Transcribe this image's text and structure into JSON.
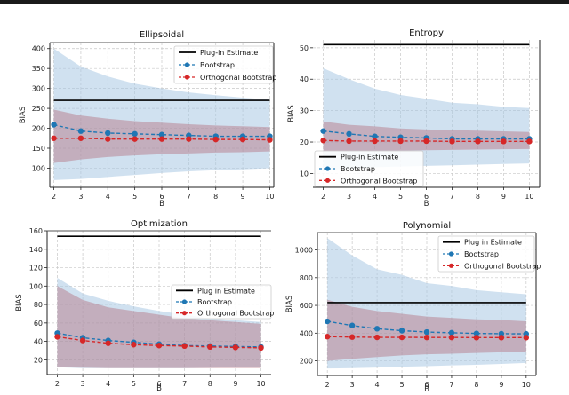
{
  "colors": {
    "plugin": "#000000",
    "bootstrap": "#1f77b4",
    "orthogonal": "#d62728",
    "bootstrap_band": "#a9c8e4",
    "orthogonal_band": "#b4707e"
  },
  "chart_data": [
    {
      "type": "line",
      "title": "Ellipsoidal",
      "xlabel": "B",
      "ylabel": "BIAS",
      "x": [
        2,
        3,
        4,
        5,
        6,
        7,
        8,
        9,
        10
      ],
      "xlim": [
        1.85,
        10.15
      ],
      "ylim": [
        52,
        415
      ],
      "yticks": [
        100,
        150,
        200,
        250,
        300,
        350,
        400
      ],
      "legend": "top-right",
      "grid": true,
      "series": [
        {
          "name": "Plug-in Estimate",
          "values": [
            270,
            270,
            270,
            270,
            270,
            270,
            270,
            270,
            270
          ]
        },
        {
          "name": "Bootstrap",
          "values": [
            209,
            193,
            188,
            186,
            184,
            182,
            180,
            180,
            180
          ],
          "band_upper": [
            400,
            355,
            330,
            312,
            300,
            290,
            283,
            277,
            272
          ],
          "band_lower": [
            70,
            73,
            78,
            83,
            88,
            92,
            95,
            97,
            100
          ]
        },
        {
          "name": "Orthogonal Bootstrap",
          "values": [
            175,
            175,
            173,
            173,
            173,
            173,
            172,
            172,
            171
          ],
          "band_upper": [
            247,
            232,
            224,
            218,
            214,
            210,
            207,
            205,
            203
          ],
          "band_lower": [
            113,
            122,
            128,
            132,
            135,
            137,
            139,
            140,
            142
          ]
        }
      ]
    },
    {
      "type": "line",
      "title": "Entropy",
      "xlabel": "B",
      "ylabel": "BIAS",
      "x": [
        2,
        3,
        4,
        5,
        6,
        7,
        8,
        9,
        10
      ],
      "xlim": [
        1.6,
        10.4
      ],
      "ylim": [
        5.6,
        52.5
      ],
      "yticks": [
        10,
        20,
        30,
        40,
        50
      ],
      "legend": "lower-left",
      "grid": true,
      "series": [
        {
          "name": "Plug-in Estimate",
          "values": [
            51,
            51,
            51,
            51,
            51,
            51,
            51,
            51,
            51
          ]
        },
        {
          "name": "Bootstrap",
          "values": [
            23.5,
            22.6,
            21.8,
            21.5,
            21.3,
            21.0,
            21.0,
            21.0,
            21.0
          ],
          "band_upper": [
            43.5,
            40,
            37,
            35,
            33.8,
            32.5,
            32,
            31.2,
            30.8
          ],
          "band_lower": [
            11,
            11.5,
            12,
            12.2,
            12.4,
            12.6,
            12.8,
            13,
            13.2
          ]
        },
        {
          "name": "Orthogonal Bootstrap",
          "values": [
            20.5,
            20.3,
            20.3,
            20.3,
            20.3,
            20.2,
            20.2,
            20.2,
            20.2
          ],
          "band_upper": [
            26.5,
            25.5,
            25,
            24.3,
            24,
            23.8,
            23.6,
            23.4,
            23.2
          ],
          "band_lower": [
            17,
            17.1,
            17.2,
            17.3,
            17.4,
            17.5,
            17.6,
            17.7,
            17.8
          ]
        }
      ]
    },
    {
      "type": "line",
      "title": "Optimization",
      "xlabel": "B",
      "ylabel": "BIAS",
      "x": [
        2,
        3,
        4,
        5,
        6,
        7,
        8,
        9,
        10
      ],
      "xlim": [
        1.6,
        10.4
      ],
      "ylim": [
        4,
        160
      ],
      "yticks": [
        20,
        40,
        60,
        80,
        100,
        120,
        140,
        160
      ],
      "legend": "center-right",
      "grid": true,
      "series": [
        {
          "name": "Plug in Estimate",
          "values": [
            154,
            154,
            154,
            154,
            154,
            154,
            154,
            154,
            154
          ]
        },
        {
          "name": "Bootstrap",
          "values": [
            49,
            44,
            41,
            39,
            37,
            35.5,
            35,
            34.5,
            34
          ],
          "band_upper": [
            109,
            92,
            84,
            78,
            73,
            69,
            65,
            63,
            61
          ],
          "band_lower": [
            12,
            11,
            11,
            11,
            11,
            11,
            11.5,
            12,
            12
          ]
        },
        {
          "name": "Orthogonal Bootstrap",
          "values": [
            45,
            41,
            38,
            36.5,
            35.5,
            35,
            34,
            33.5,
            33
          ],
          "band_upper": [
            100,
            85,
            77,
            73,
            69,
            65,
            63,
            61,
            59
          ],
          "band_lower": [
            12,
            11.5,
            11,
            11,
            11,
            11,
            11,
            11,
            11
          ]
        }
      ]
    },
    {
      "type": "line",
      "title": "Polynomial",
      "xlabel": "B",
      "ylabel": "BIAS",
      "x": [
        2,
        3,
        4,
        5,
        6,
        7,
        8,
        9,
        10
      ],
      "xlim": [
        1.6,
        10.4
      ],
      "ylim": [
        95,
        1125
      ],
      "yticks": [
        200,
        400,
        600,
        800,
        1000
      ],
      "legend": "top-right",
      "grid": true,
      "series": [
        {
          "name": "Plug in Estimate",
          "values": [
            620,
            620,
            620,
            620,
            620,
            620,
            620,
            620,
            620
          ]
        },
        {
          "name": "Bootstrap",
          "values": [
            485,
            455,
            432,
            418,
            408,
            403,
            398,
            396,
            395
          ],
          "band_upper": [
            1085,
            960,
            860,
            820,
            760,
            740,
            710,
            695,
            680
          ],
          "band_lower": [
            145,
            148,
            152,
            158,
            162,
            168,
            172,
            178,
            185
          ]
        },
        {
          "name": "Orthogonal Bootstrap",
          "values": [
            375,
            372,
            370,
            370,
            369,
            369,
            368,
            368,
            368
          ],
          "band_upper": [
            640,
            590,
            560,
            540,
            520,
            510,
            500,
            495,
            485
          ],
          "band_lower": [
            200,
            215,
            228,
            240,
            248,
            252,
            257,
            262,
            268
          ]
        }
      ]
    }
  ]
}
